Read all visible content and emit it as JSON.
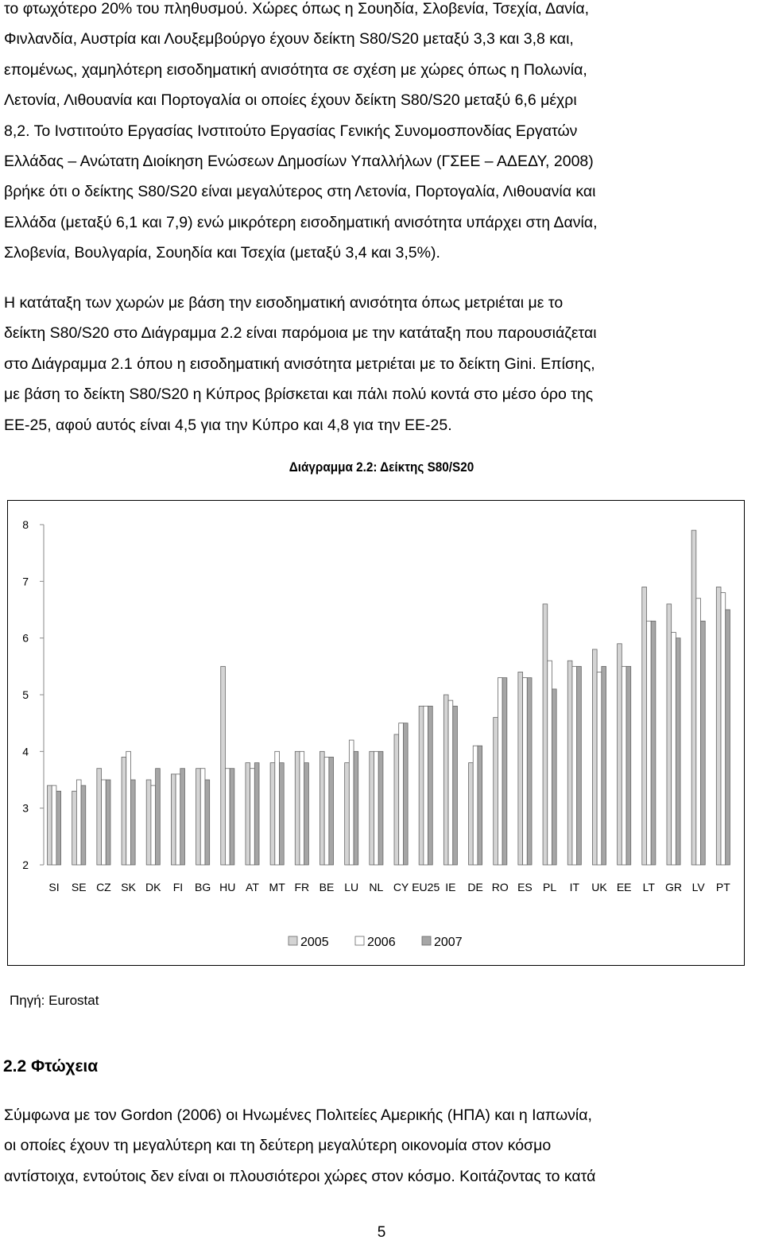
{
  "body": {
    "paragraph_1": [
      "το φτωχότερο 20% του πληθυσμού. Χώρες όπως η Σουηδία, Σλοβενία, Τσεχία, Δανία,",
      "Φινλανδία, Αυστρία και Λουξεμβούργο έχουν δείκτη S80/S20 μεταξύ 3,3 και 3,8 και,",
      "επομένως, χαμηλότερη εισοδηματική ανισότητα σε σχέση με χώρες όπως η Πολωνία,",
      "Λετονία, Λιθουανία και Πορτογαλία οι οποίες έχουν δείκτη S80/S20 μεταξύ 6,6 μέχρι",
      "8,2. Το Ινστιτούτο Εργασίας Ινστιτούτο Εργασίας Γενικής Συνομοσπονδίας Εργατών",
      "Ελλάδας – Ανώτατη Διοίκηση Ενώσεων Δημοσίων Υπαλλήλων (ΓΣΕΕ – ΑΔΕΔΥ, 2008)",
      "βρήκε ότι ο δείκτης S80/S20 είναι μεγαλύτερος στη Λετονία, Πορτογαλία, Λιθουανία και",
      "Ελλάδα (μεταξύ 6,1 και 7,9) ενώ μικρότερη εισοδηματική ανισότητα υπάρχει στη Δανία,",
      "Σλοβενία, Βουλγαρία, Σουηδία και Τσεχία (μεταξύ 3,4 και 3,5%)."
    ],
    "paragraph_2": [
      "Η κατάταξη των χωρών με βάση την εισοδηματική ανισότητα όπως μετριέται με το",
      "δείκτη S80/S20 στο Διάγραμμα 2.2 είναι παρόμοια με την κατάταξη που παρουσιάζεται",
      "στο Διάγραμμα 2.1 όπου η εισοδηματική ανισότητα μετριέται με το δείκτη Gini. Επίσης,",
      "με βάση το δείκτη S80/S20 η Κύπρος βρίσκεται και πάλι πολύ κοντά στο μέσο όρο της",
      "ΕΕ-25, αφού αυτός είναι 4,5 για την Κύπρο και 4,8 για την ΕΕ-25."
    ],
    "source": "Πηγή: Eurostat",
    "section_heading": "2.2 Φτώχεια",
    "paragraph_3": [
      "Σύμφωνα με τον Gordon (2006) οι Ηνωμένες Πολιτείες Αμερικής (ΗΠΑ) και η Ιαπωνία,",
      "οι οποίες έχουν τη μεγαλύτερη και τη δεύτερη μεγαλύτερη οικονομία στον κόσμο",
      "αντίστοιχα, εντούτοις δεν είναι οι πλουσιότεροι χώρες στον κόσμο. Κοιτάζοντας το κατά"
    ],
    "page_number": "5"
  },
  "chart_data": {
    "type": "bar",
    "title": "Διάγραμμα 2.2: Δείκτης S80/S20",
    "categories": [
      "SI",
      "SE",
      "CZ",
      "SK",
      "DK",
      "FI",
      "BG",
      "HU",
      "AT",
      "MT",
      "FR",
      "BE",
      "LU",
      "NL",
      "CY",
      "EU25",
      "IE",
      "DE",
      "RO",
      "ES",
      "PL",
      "IT",
      "UK",
      "EE",
      "LT",
      "GR",
      "LV",
      "PT"
    ],
    "series": [
      {
        "name": "2005",
        "color": "#d4d4d4",
        "values": [
          3.4,
          3.3,
          3.7,
          3.9,
          3.5,
          3.6,
          3.7,
          5.5,
          3.8,
          3.8,
          4.0,
          4.0,
          3.8,
          4.0,
          4.3,
          4.8,
          5.0,
          3.8,
          4.6,
          5.4,
          6.6,
          5.6,
          5.8,
          5.9,
          6.9,
          6.6,
          7.9,
          6.9
        ]
      },
      {
        "name": "2006",
        "color": "#ffffff",
        "values": [
          3.4,
          3.5,
          3.5,
          4.0,
          3.4,
          3.6,
          3.7,
          3.7,
          3.7,
          4.0,
          4.0,
          3.9,
          4.2,
          4.0,
          4.5,
          4.8,
          4.9,
          4.1,
          5.3,
          5.3,
          5.6,
          5.5,
          5.4,
          5.5,
          6.3,
          6.1,
          6.7,
          6.8
        ]
      },
      {
        "name": "2007",
        "color": "#a6a6a6",
        "values": [
          3.3,
          3.4,
          3.5,
          3.5,
          3.7,
          3.7,
          3.5,
          3.7,
          3.8,
          3.8,
          3.8,
          3.9,
          4.0,
          4.0,
          4.5,
          4.8,
          4.8,
          4.1,
          5.3,
          5.3,
          5.1,
          5.5,
          5.5,
          5.5,
          6.3,
          6.0,
          6.3,
          6.5
        ]
      }
    ],
    "ylim": [
      2,
      8
    ],
    "yticks": [
      "2",
      "3",
      "4",
      "5",
      "6",
      "7",
      "8"
    ],
    "grid": false,
    "legend_position": "bottom-center"
  }
}
